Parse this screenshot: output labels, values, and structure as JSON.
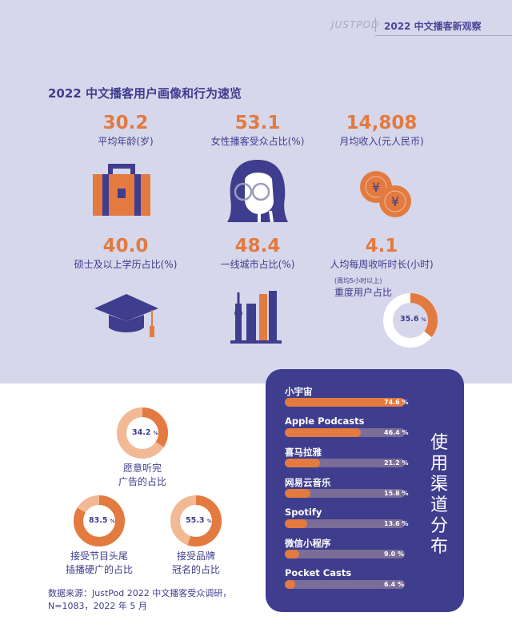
{
  "header": {
    "brand": "JUSTPOD",
    "title": "2022 中文播客新观察"
  },
  "section_title": "2022 中文播客用户画像和行为速览",
  "stats": [
    {
      "value": "30.2",
      "label": "平均年龄(岁)"
    },
    {
      "value": "53.1",
      "label": "女性播客受众占比(%)"
    },
    {
      "value": "14,808",
      "label": "月均收入(元人民币)"
    },
    {
      "value": "40.0",
      "label": "硕士及以上学历占比(%)"
    },
    {
      "value": "48.4",
      "label": "一线城市占比(%)"
    },
    {
      "value": "4.1",
      "label": "人均每周收听时长(小时)"
    }
  ],
  "heavy_users": {
    "note": "(周均5小时以上)",
    "label": "重度用户占比",
    "value": 35.6,
    "value_text": "35.6",
    "unit": "%"
  },
  "ad_stats": [
    {
      "value": 34.2,
      "value_text": "34.2",
      "unit": "%",
      "label_1": "愿意听完",
      "label_2": "广告的占比"
    },
    {
      "value": 83.5,
      "value_text": "83.5",
      "unit": "%",
      "label_1": "接受节目头尾",
      "label_2": "插播硬广的占比"
    },
    {
      "value": 55.3,
      "value_text": "55.3",
      "unit": "%",
      "label_1": "接受品牌",
      "label_2": "冠名的占比"
    }
  ],
  "chart_data": {
    "type": "bar",
    "title": "使用渠道分布",
    "categories": [
      "小宇宙",
      "Apple Podcasts",
      "喜马拉雅",
      "网易云音乐",
      "Spotify",
      "微信小程序",
      "Pocket Casts"
    ],
    "values": [
      74.6,
      46.4,
      21.2,
      15.8,
      13.6,
      9.0,
      6.4
    ],
    "value_labels": [
      "74.6",
      "46.4",
      "21.2",
      "15.8",
      "13.6",
      "9.0",
      "6.4"
    ],
    "unit": "%",
    "xlim": [
      0,
      100
    ]
  },
  "source": {
    "line1": "数据来源：JustPod 2022 中文播客受众调研，",
    "line2": "N=1083，2022 年 5 月"
  },
  "colors": {
    "purple": "#3f3d8e",
    "orange": "#e37a3f",
    "light_orange": "#f2b995",
    "lavender": "#d6d7eb"
  }
}
